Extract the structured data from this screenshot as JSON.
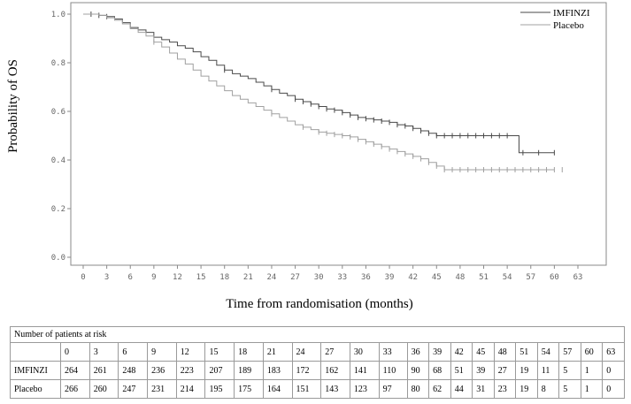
{
  "chart_data": {
    "type": "line",
    "subtype": "kaplan-meier",
    "xlabel": "Time from randomisation (months)",
    "ylabel": "Probability of OS",
    "xlim": [
      0,
      63
    ],
    "ylim": [
      0,
      1
    ],
    "x_ticks": [
      0,
      3,
      6,
      9,
      12,
      15,
      18,
      21,
      24,
      27,
      30,
      33,
      36,
      39,
      42,
      45,
      48,
      51,
      54,
      57,
      60,
      63
    ],
    "y_ticks": [
      "0.0",
      "0.2",
      "0.4",
      "0.6",
      "0.8",
      "1.0"
    ],
    "legend_position": "top-right",
    "grid": false,
    "series": [
      {
        "name": "IMFINZI",
        "color": "#4a4a4a",
        "points": [
          [
            0,
            1.0
          ],
          [
            1,
            1.0
          ],
          [
            2,
            0.995
          ],
          [
            3,
            0.99
          ],
          [
            4,
            0.98
          ],
          [
            5,
            0.965
          ],
          [
            6,
            0.945
          ],
          [
            7,
            0.935
          ],
          [
            8,
            0.925
          ],
          [
            9,
            0.905
          ],
          [
            10,
            0.895
          ],
          [
            11,
            0.885
          ],
          [
            12,
            0.87
          ],
          [
            13,
            0.86
          ],
          [
            14,
            0.845
          ],
          [
            15,
            0.825
          ],
          [
            16,
            0.81
          ],
          [
            17,
            0.79
          ],
          [
            18,
            0.77
          ],
          [
            19,
            0.755
          ],
          [
            20,
            0.745
          ],
          [
            21,
            0.735
          ],
          [
            22,
            0.72
          ],
          [
            23,
            0.705
          ],
          [
            24,
            0.69
          ],
          [
            25,
            0.675
          ],
          [
            26,
            0.665
          ],
          [
            27,
            0.65
          ],
          [
            28,
            0.64
          ],
          [
            29,
            0.63
          ],
          [
            30,
            0.62
          ],
          [
            31,
            0.61
          ],
          [
            32,
            0.605
          ],
          [
            33,
            0.595
          ],
          [
            34,
            0.585
          ],
          [
            35,
            0.575
          ],
          [
            36,
            0.57
          ],
          [
            37,
            0.565
          ],
          [
            38,
            0.56
          ],
          [
            39,
            0.555
          ],
          [
            40,
            0.545
          ],
          [
            41,
            0.54
          ],
          [
            42,
            0.53
          ],
          [
            43,
            0.52
          ],
          [
            44,
            0.51
          ],
          [
            45,
            0.5
          ],
          [
            47,
            0.5
          ],
          [
            50,
            0.5
          ],
          [
            53,
            0.5
          ],
          [
            55,
            0.5
          ],
          [
            55.5,
            0.43
          ],
          [
            60,
            0.43
          ]
        ],
        "censors": [
          1,
          2,
          3,
          18,
          24,
          27,
          28,
          29,
          30,
          31,
          32,
          33,
          34,
          35,
          36,
          37,
          38,
          39,
          40,
          41,
          42,
          43,
          44,
          45,
          46,
          47,
          48,
          49,
          50,
          51,
          52,
          53,
          54,
          56,
          58,
          60
        ]
      },
      {
        "name": "Placebo",
        "color": "#a0a0a0",
        "points": [
          [
            0,
            1.0
          ],
          [
            1,
            1.0
          ],
          [
            2,
            0.995
          ],
          [
            3,
            0.985
          ],
          [
            4,
            0.975
          ],
          [
            5,
            0.96
          ],
          [
            6,
            0.94
          ],
          [
            7,
            0.925
          ],
          [
            8,
            0.91
          ],
          [
            9,
            0.885
          ],
          [
            10,
            0.865
          ],
          [
            11,
            0.84
          ],
          [
            12,
            0.815
          ],
          [
            13,
            0.795
          ],
          [
            14,
            0.77
          ],
          [
            15,
            0.745
          ],
          [
            16,
            0.725
          ],
          [
            17,
            0.705
          ],
          [
            18,
            0.685
          ],
          [
            19,
            0.665
          ],
          [
            20,
            0.65
          ],
          [
            21,
            0.635
          ],
          [
            22,
            0.62
          ],
          [
            23,
            0.605
          ],
          [
            24,
            0.59
          ],
          [
            25,
            0.575
          ],
          [
            26,
            0.56
          ],
          [
            27,
            0.545
          ],
          [
            28,
            0.535
          ],
          [
            29,
            0.525
          ],
          [
            30,
            0.515
          ],
          [
            31,
            0.51
          ],
          [
            32,
            0.505
          ],
          [
            33,
            0.5
          ],
          [
            34,
            0.495
          ],
          [
            35,
            0.485
          ],
          [
            36,
            0.475
          ],
          [
            37,
            0.465
          ],
          [
            38,
            0.455
          ],
          [
            39,
            0.445
          ],
          [
            40,
            0.435
          ],
          [
            41,
            0.425
          ],
          [
            42,
            0.415
          ],
          [
            43,
            0.405
          ],
          [
            44,
            0.39
          ],
          [
            45,
            0.375
          ],
          [
            46,
            0.36
          ],
          [
            48,
            0.36
          ],
          [
            52,
            0.36
          ],
          [
            56,
            0.36
          ],
          [
            60,
            0.36
          ]
        ],
        "censors": [
          9,
          24,
          28,
          30,
          31,
          32,
          33,
          34,
          35,
          36,
          37,
          38,
          39,
          40,
          41,
          42,
          43,
          44,
          45,
          46,
          47,
          48,
          49,
          50,
          51,
          52,
          53,
          54,
          55,
          56,
          57,
          58,
          59,
          60,
          61
        ]
      }
    ]
  },
  "risk_table": {
    "title": "Number of patients at risk",
    "timepoints": [
      "0",
      "3",
      "6",
      "9",
      "12",
      "15",
      "18",
      "21",
      "24",
      "27",
      "30",
      "33",
      "36",
      "39",
      "42",
      "45",
      "48",
      "51",
      "54",
      "57",
      "60",
      "63"
    ],
    "rows": [
      {
        "label": "IMFINZI",
        "values": [
          "264",
          "261",
          "248",
          "236",
          "223",
          "207",
          "189",
          "183",
          "172",
          "162",
          "141",
          "110",
          "90",
          "68",
          "51",
          "39",
          "27",
          "19",
          "11",
          "5",
          "1",
          "0"
        ]
      },
      {
        "label": "Placebo",
        "values": [
          "266",
          "260",
          "247",
          "231",
          "214",
          "195",
          "175",
          "164",
          "151",
          "143",
          "123",
          "97",
          "80",
          "62",
          "44",
          "31",
          "23",
          "19",
          "8",
          "5",
          "1",
          "0"
        ]
      }
    ]
  }
}
